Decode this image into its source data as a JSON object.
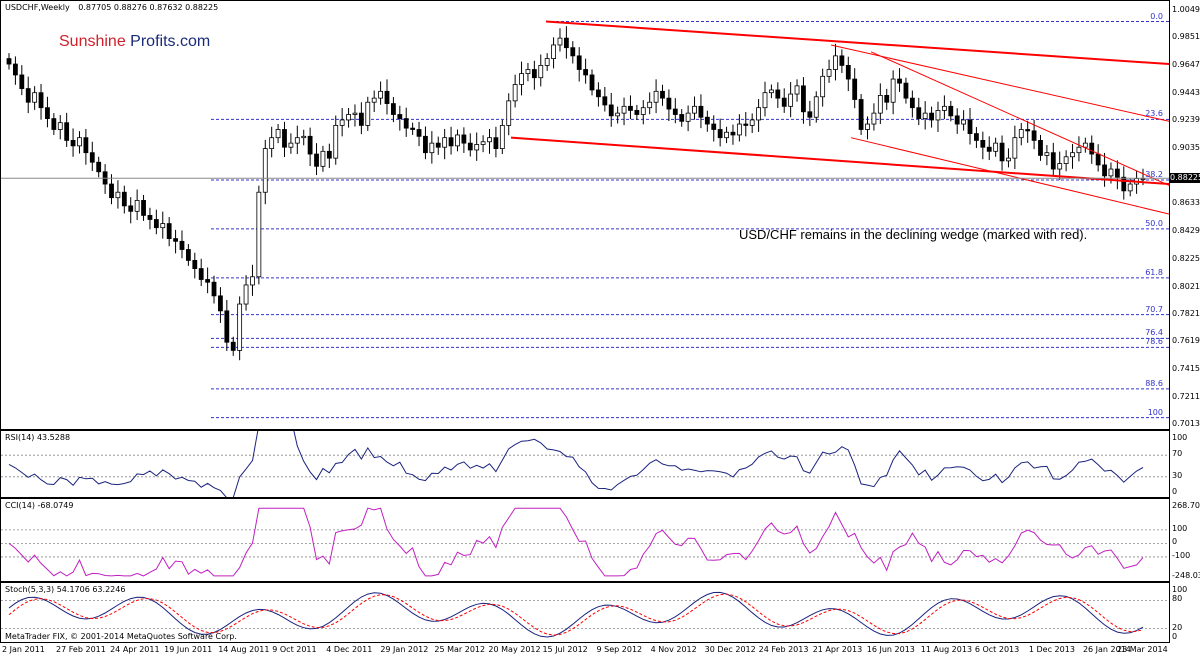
{
  "header": {
    "title": "USDCHF,Weekly",
    "ohlc": "0.87705 0.88276 0.87632 0.88225"
  },
  "brand": {
    "part1": "Sunshine",
    "part2": " Profits.com"
  },
  "annotation": "USD/CHF remains in the declining wedge (marked with red).",
  "current_price_label": "0.88225",
  "copyright": "MetaTrader FIX, © 2001-2014 MetaQuotes Software Corp.",
  "price_axis": [
    "1.00490",
    "0.98510",
    "0.96470",
    "0.94430",
    "0.92390",
    "0.90350",
    "0.88225",
    "0.86330",
    "0.84290",
    "0.82250",
    "0.80210",
    "0.78210",
    "0.76190",
    "0.74150",
    "0.72110",
    "0.70130"
  ],
  "fib_levels": [
    "0.0",
    "23.6",
    "38.2",
    "50.0",
    "61.8",
    "70.7",
    "76.4",
    "78.6",
    "88.6",
    "100"
  ],
  "x_axis": [
    "2 Jan 2011",
    "27 Feb 2011",
    "24 Apr 2011",
    "19 Jun 2011",
    "14 Aug 2011",
    "9 Oct 2011",
    "4 Dec 2011",
    "29 Jan 2012",
    "25 Mar 2012",
    "20 May 2012",
    "15 Jul 2012",
    "9 Sep 2012",
    "4 Nov 2012",
    "30 Dec 2012",
    "24 Feb 2013",
    "21 Apr 2013",
    "16 Jun 2013",
    "11 Aug 2013",
    "6 Oct 2013",
    "1 Dec 2013",
    "26 Jan 2014",
    "23 Mar 2014"
  ],
  "rsi": {
    "label": "RSI(14) 43.5288",
    "axis": [
      "100",
      "70",
      "30",
      "0"
    ]
  },
  "cci": {
    "label": "CCI(14) -68.0749",
    "axis": [
      "268.702",
      "100",
      "0",
      "-100",
      "-248.0308"
    ]
  },
  "stoch": {
    "label": "Stoch(5,3,3) 54.1706 63.2246",
    "axis": [
      "100",
      "80",
      "20",
      "0"
    ]
  },
  "colors": {
    "bull": "#ffffff",
    "bear": "#000000",
    "wedge": "#ff0000",
    "fib": "#3333cc",
    "rsi": "#1a237e",
    "cci": "#c020c0",
    "stoch_main": "#1a237e",
    "stoch_signal": "#ff0000"
  },
  "chart_data": {
    "type": "candlestick",
    "symbol": "USDCHF",
    "timeframe": "Weekly",
    "last_ohlc": {
      "open": 0.87705,
      "high": 0.88276,
      "low": 0.87632,
      "close": 0.88225
    },
    "ylim": [
      0.7013,
      1.0049
    ],
    "x_range": [
      "2 Jan 2011",
      "30 Mar 2014"
    ],
    "fibonacci": [
      {
        "level": "0.0",
        "price": 0.9972
      },
      {
        "level": "23.6",
        "price": 0.9254
      },
      {
        "level": "38.2",
        "price": 0.881
      },
      {
        "level": "50.0",
        "price": 0.8451
      },
      {
        "level": "61.8",
        "price": 0.8092
      },
      {
        "level": "70.7",
        "price": 0.7822
      },
      {
        "level": "76.4",
        "price": 0.7648
      },
      {
        "level": "78.6",
        "price": 0.7582
      },
      {
        "level": "88.6",
        "price": 0.7278
      },
      {
        "level": "100",
        "price": 0.7067
      }
    ],
    "close_series": [
      0.966,
      0.958,
      0.948,
      0.938,
      0.945,
      0.934,
      0.926,
      0.918,
      0.923,
      0.91,
      0.906,
      0.912,
      0.901,
      0.894,
      0.887,
      0.878,
      0.868,
      0.872,
      0.862,
      0.858,
      0.866,
      0.855,
      0.852,
      0.846,
      0.849,
      0.838,
      0.836,
      0.83,
      0.822,
      0.816,
      0.808,
      0.806,
      0.796,
      0.785,
      0.762,
      0.756,
      0.79,
      0.804,
      0.81,
      0.872,
      0.904,
      0.912,
      0.918,
      0.905,
      0.908,
      0.912,
      0.913,
      0.9,
      0.891,
      0.902,
      0.897,
      0.921,
      0.925,
      0.929,
      0.93,
      0.921,
      0.938,
      0.941,
      0.946,
      0.937,
      0.929,
      0.926,
      0.919,
      0.918,
      0.913,
      0.901,
      0.908,
      0.905,
      0.912,
      0.906,
      0.914,
      0.908,
      0.903,
      0.907,
      0.909,
      0.912,
      0.904,
      0.921,
      0.939,
      0.951,
      0.959,
      0.962,
      0.956,
      0.965,
      0.97,
      0.98,
      0.985,
      0.978,
      0.972,
      0.962,
      0.958,
      0.947,
      0.942,
      0.936,
      0.928,
      0.93,
      0.935,
      0.932,
      0.929,
      0.934,
      0.938,
      0.946,
      0.941,
      0.933,
      0.929,
      0.924,
      0.93,
      0.935,
      0.927,
      0.922,
      0.918,
      0.912,
      0.916,
      0.914,
      0.922,
      0.921,
      0.925,
      0.934,
      0.945,
      0.947,
      0.941,
      0.935,
      0.944,
      0.95,
      0.931,
      0.927,
      0.942,
      0.957,
      0.962,
      0.972,
      0.965,
      0.955,
      0.94,
      0.918,
      0.922,
      0.93,
      0.943,
      0.938,
      0.955,
      0.952,
      0.941,
      0.934,
      0.926,
      0.93,
      0.925,
      0.932,
      0.935,
      0.928,
      0.922,
      0.925,
      0.915,
      0.91,
      0.905,
      0.902,
      0.908,
      0.895,
      0.897,
      0.912,
      0.918,
      0.917,
      0.91,
      0.899,
      0.901,
      0.889,
      0.893,
      0.898,
      0.901,
      0.905,
      0.908,
      0.9,
      0.892,
      0.884,
      0.889,
      0.883,
      0.873,
      0.878,
      0.882,
      0.882
    ]
  }
}
